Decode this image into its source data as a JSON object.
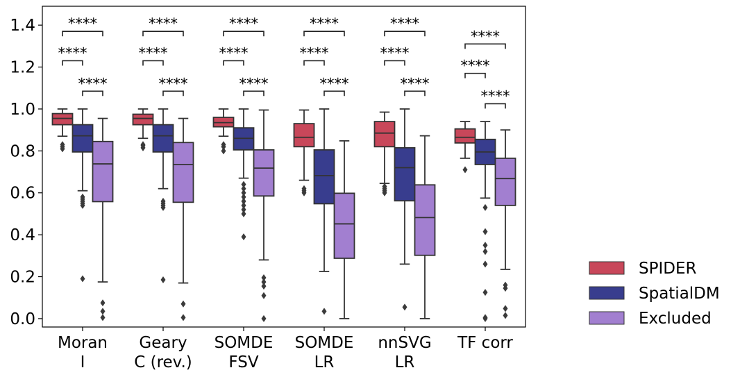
{
  "chart_data": {
    "type": "box",
    "categories": [
      [
        "Moran",
        "I"
      ],
      [
        "Geary",
        "C (rev.)"
      ],
      [
        "SOMDE",
        "FSV"
      ],
      [
        "SOMDE",
        "LR"
      ],
      [
        "nnSVG",
        "LR"
      ],
      [
        "TF corr"
      ]
    ],
    "ylim": [
      -0.04,
      1.49
    ],
    "yticks": [
      "0.0",
      "0.2",
      "0.4",
      "0.6",
      "0.8",
      "1.0",
      "1.2",
      "1.4"
    ],
    "legend_position": "outside-right-bottom",
    "series": [
      {
        "name": "SPIDER",
        "color": "#c8475a",
        "boxes": [
          {
            "min": 0.87,
            "q1": 0.925,
            "median": 0.955,
            "q3": 0.978,
            "max": 1.0,
            "outliers": [
              0.81,
              0.82,
              0.83
            ]
          },
          {
            "min": 0.86,
            "q1": 0.925,
            "median": 0.955,
            "q3": 0.975,
            "max": 1.0,
            "outliers": [
              0.815,
              0.825,
              0.83
            ]
          },
          {
            "min": 0.87,
            "q1": 0.915,
            "median": 0.935,
            "q3": 0.96,
            "max": 1.0,
            "outliers": [
              0.8,
              0.82,
              0.83
            ]
          },
          {
            "min": 0.66,
            "q1": 0.82,
            "median": 0.865,
            "q3": 0.93,
            "max": 0.995,
            "outliers": [
              0.6,
              0.61,
              0.62
            ]
          },
          {
            "min": 0.645,
            "q1": 0.82,
            "median": 0.885,
            "q3": 0.94,
            "max": 0.985,
            "outliers": [
              0.6,
              0.61,
              0.62,
              0.63
            ]
          },
          {
            "min": 0.765,
            "q1": 0.838,
            "median": 0.865,
            "q3": 0.905,
            "max": 0.94,
            "outliers": [
              0.71
            ]
          }
        ]
      },
      {
        "name": "SpatialDM",
        "color": "#383d8e",
        "boxes": [
          {
            "min": 0.61,
            "q1": 0.795,
            "median": 0.872,
            "q3": 0.925,
            "max": 1.0,
            "outliers": [
              0.54,
              0.55,
              0.56,
              0.57,
              0.58,
              0.19
            ]
          },
          {
            "min": 0.62,
            "q1": 0.795,
            "median": 0.872,
            "q3": 0.925,
            "max": 1.0,
            "outliers": [
              0.53,
              0.54,
              0.55,
              0.56,
              0.185
            ]
          },
          {
            "min": 0.67,
            "q1": 0.805,
            "median": 0.86,
            "q3": 0.91,
            "max": 1.0,
            "outliers": [
              0.64,
              0.62,
              0.6,
              0.58,
              0.56,
              0.54,
              0.52,
              0.5,
              0.39
            ]
          },
          {
            "min": 0.225,
            "q1": 0.548,
            "median": 0.682,
            "q3": 0.805,
            "max": 1.0,
            "outliers": [
              0.035
            ]
          },
          {
            "min": 0.26,
            "q1": 0.562,
            "median": 0.72,
            "q3": 0.815,
            "max": 1.0,
            "outliers": [
              0.055
            ]
          },
          {
            "min": 0.575,
            "q1": 0.735,
            "median": 0.795,
            "q3": 0.855,
            "max": 0.94,
            "outliers": [
              0.53,
              0.415,
              0.35,
              0.32,
              0.26,
              0.125,
              0.005,
              0.0
            ]
          }
        ]
      },
      {
        "name": "Excluded",
        "color": "#a27fd0",
        "boxes": [
          {
            "min": 0.175,
            "q1": 0.558,
            "median": 0.738,
            "q3": 0.845,
            "max": 0.955,
            "outliers": [
              0.075,
              0.035,
              0.005
            ]
          },
          {
            "min": 0.17,
            "q1": 0.555,
            "median": 0.735,
            "q3": 0.84,
            "max": 0.955,
            "outliers": [
              0.07,
              0.005
            ]
          },
          {
            "min": 0.28,
            "q1": 0.585,
            "median": 0.718,
            "q3": 0.805,
            "max": 0.995,
            "outliers": [
              0.195,
              0.175,
              0.155,
              0.11,
              0.0
            ]
          },
          {
            "min": 0.0,
            "q1": 0.288,
            "median": 0.452,
            "q3": 0.598,
            "max": 0.848,
            "outliers": []
          },
          {
            "min": 0.0,
            "q1": 0.302,
            "median": 0.482,
            "q3": 0.638,
            "max": 0.872,
            "outliers": []
          },
          {
            "min": 0.235,
            "q1": 0.54,
            "median": 0.668,
            "q3": 0.765,
            "max": 0.9,
            "outliers": [
              0.16,
              0.145,
              0.048,
              0.015
            ]
          }
        ]
      }
    ],
    "annotations": {
      "label": "****",
      "default_levels": {
        "SPIDER-Excluded": 1.37,
        "SPIDER-SpatialDM": 1.23,
        "SpatialDM-Excluded": 1.085
      },
      "tf_corr_levels": {
        "SPIDER-Excluded": 1.31,
        "SPIDER-SpatialDM": 1.17,
        "SpatialDM-Excluded": 1.025
      }
    }
  }
}
